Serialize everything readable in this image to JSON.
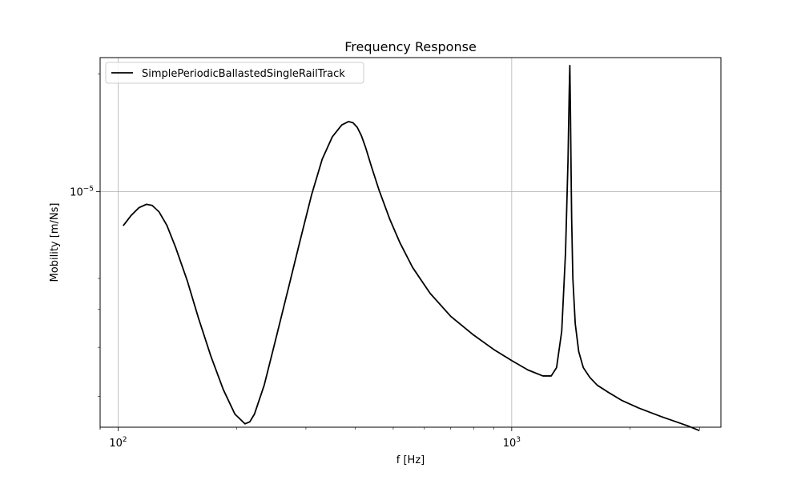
{
  "chart_data": {
    "type": "line",
    "title": "Frequency Response",
    "xlabel": "f [Hz]",
    "ylabel": "Mobility [m/Ns]",
    "xscale": "log",
    "yscale": "log",
    "xlim": [
      90,
      3400
    ],
    "ylim": [
      2.5e-06,
      2.2e-05
    ],
    "xticks": [
      {
        "value": 100,
        "base": "10",
        "exp": "2"
      },
      {
        "value": 1000,
        "base": "10",
        "exp": "3"
      }
    ],
    "yticks": [
      {
        "value": 1e-05,
        "base": "10",
        "exp": "−5"
      }
    ],
    "y_minor_ticks": [
      3e-06,
      4e-06,
      5e-06,
      6e-06,
      2e-05
    ],
    "grid": true,
    "legend_position": "top-left",
    "series": [
      {
        "name": "SimplePeriodicBallastedSingleRailTrack",
        "color": "#000000",
        "x": [
          103,
          108,
          113,
          118,
          122,
          127,
          133,
          140,
          150,
          160,
          172,
          185,
          198,
          210,
          216,
          222,
          235,
          250,
          270,
          290,
          310,
          330,
          350,
          370,
          385,
          395,
          405,
          415,
          425,
          440,
          460,
          490,
          520,
          560,
          620,
          700,
          800,
          900,
          1000,
          1100,
          1200,
          1260,
          1300,
          1340,
          1370,
          1390,
          1400,
          1405,
          1410,
          1415,
          1420,
          1430,
          1450,
          1480,
          1520,
          1580,
          1650,
          1750,
          1900,
          2100,
          2400,
          2800,
          3000
        ],
        "y": [
          8.18e-06,
          8.7e-06,
          9.1e-06,
          9.28e-06,
          9.22e-06,
          8.88e-06,
          8.2e-06,
          7.2e-06,
          5.9e-06,
          4.75e-06,
          3.8e-06,
          3.12e-06,
          2.7e-06,
          2.55e-06,
          2.58e-06,
          2.7e-06,
          3.2e-06,
          4.1e-06,
          5.6e-06,
          7.5e-06,
          9.8e-06,
          1.21e-05,
          1.38e-05,
          1.48e-05,
          1.51e-05,
          1.5e-05,
          1.46e-05,
          1.39e-05,
          1.3e-05,
          1.16e-05,
          1.01e-05,
          8.5e-06,
          7.4e-06,
          6.4e-06,
          5.5e-06,
          4.8e-06,
          4.3e-06,
          3.95e-06,
          3.7e-06,
          3.5e-06,
          3.38e-06,
          3.38e-06,
          3.55e-06,
          4.4e-06,
          7e-06,
          1.2e-05,
          1.8e-05,
          2.1e-05,
          1.6e-05,
          1.15e-05,
          8.5e-06,
          6e-06,
          4.6e-06,
          3.9e-06,
          3.55e-06,
          3.35e-06,
          3.2e-06,
          3.08e-06,
          2.93e-06,
          2.8e-06,
          2.66e-06,
          2.52e-06,
          2.45e-06
        ]
      }
    ]
  }
}
